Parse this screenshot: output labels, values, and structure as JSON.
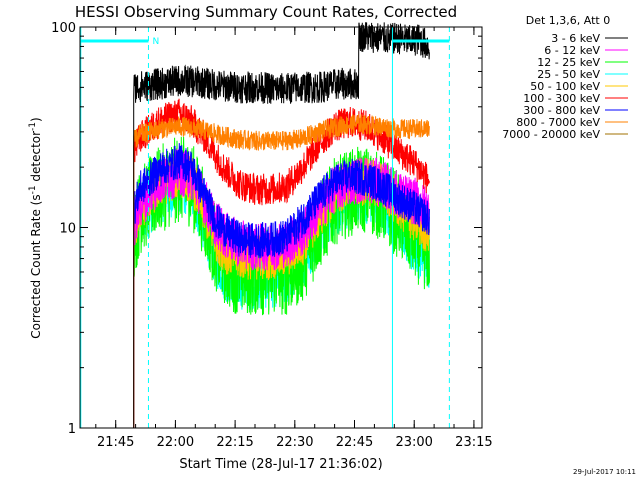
{
  "chart_data": {
    "type": "line",
    "title": "HESSI Observing Summary Count Rates, Corrected",
    "xlabel": "Start Time (28-Jul-17 21:36:02)",
    "ylabel_main": "Corrected Count Rate (s",
    "ylabel_sup": "-1",
    "ylabel_mid": " detector",
    "ylabel_sup2": "-1",
    "ylabel_end": ")",
    "yscale": "log",
    "ylim": [
      1,
      100
    ],
    "xlim_minutes_after_start": [
      0,
      101
    ],
    "x_ticks": [
      "21:45",
      "22:00",
      "22:15",
      "22:30",
      "22:45",
      "23:00",
      "23:15"
    ],
    "x_tick_minutes": [
      8.97,
      23.97,
      38.97,
      53.97,
      68.97,
      83.97,
      98.97
    ],
    "y_ticks": [
      {
        "label": "1",
        "value": 1
      },
      {
        "label": "10",
        "value": 10
      },
      {
        "label": "100",
        "value": 100
      }
    ],
    "legend_title": "Det 1,3,6, Att 0",
    "legend_position": "right",
    "night_marker_label": "N",
    "footer_date": "29-Jul-2017 10:11",
    "data_start_min": 13.5,
    "data_end_min": 87.8,
    "series": [
      {
        "name": "3 - 6 keV",
        "color": "#000000",
        "noise": 0.08,
        "points": [
          [
            13.5,
            50
          ],
          [
            20,
            52
          ],
          [
            25,
            54
          ],
          [
            30,
            53
          ],
          [
            35,
            51
          ],
          [
            40,
            50
          ],
          [
            45,
            50
          ],
          [
            50,
            49
          ],
          [
            55,
            50
          ],
          [
            60,
            50
          ],
          [
            65,
            52
          ],
          [
            70,
            52
          ],
          [
            71,
            90
          ],
          [
            72,
            90
          ],
          [
            78,
            87
          ],
          [
            80,
            88
          ],
          [
            83,
            85
          ],
          [
            85,
            87
          ],
          [
            87.8,
            80
          ]
        ]
      },
      {
        "name": "6 - 12 keV",
        "color": "#ff00ff",
        "noise": 0.12,
        "points": [
          [
            13.5,
            10
          ],
          [
            15,
            13
          ],
          [
            20,
            17
          ],
          [
            25,
            19
          ],
          [
            28,
            18
          ],
          [
            31,
            14
          ],
          [
            34,
            10.5
          ],
          [
            37,
            9
          ],
          [
            40,
            8.3
          ],
          [
            44,
            8
          ],
          [
            48,
            8
          ],
          [
            52,
            8.3
          ],
          [
            56,
            9.5
          ],
          [
            60,
            12.5
          ],
          [
            64,
            15.5
          ],
          [
            68,
            17
          ],
          [
            72,
            17.5
          ],
          [
            76,
            16.5
          ],
          [
            80,
            14.5
          ],
          [
            84,
            13.5
          ],
          [
            87.8,
            12
          ]
        ]
      },
      {
        "name": "12 - 25 keV",
        "color": "#00ff00",
        "noise": 0.22,
        "points": [
          [
            13.5,
            9
          ],
          [
            15,
            12
          ],
          [
            20,
            15.5
          ],
          [
            25,
            17.5
          ],
          [
            28,
            16.5
          ],
          [
            31,
            12
          ],
          [
            34,
            8
          ],
          [
            37,
            6.5
          ],
          [
            40,
            6
          ],
          [
            44,
            6
          ],
          [
            48,
            6
          ],
          [
            52,
            6
          ],
          [
            56,
            7
          ],
          [
            60,
            10
          ],
          [
            64,
            13.5
          ],
          [
            68,
            15
          ],
          [
            72,
            15.5
          ],
          [
            76,
            14
          ],
          [
            80,
            11.5
          ],
          [
            84,
            9
          ],
          [
            87.8,
            7.5
          ]
        ]
      },
      {
        "name": "25 - 50 keV",
        "color": "#00ffff",
        "noise": 0.16,
        "points": [
          [
            13.5,
            9
          ],
          [
            15,
            11.5
          ],
          [
            20,
            15
          ],
          [
            25,
            17
          ],
          [
            28,
            16
          ],
          [
            31,
            11
          ],
          [
            34,
            7.3
          ],
          [
            37,
            6
          ],
          [
            40,
            5.6
          ],
          [
            44,
            5.6
          ],
          [
            48,
            5.7
          ],
          [
            52,
            5.9
          ],
          [
            56,
            7
          ],
          [
            60,
            10
          ],
          [
            64,
            13
          ],
          [
            68,
            14.5
          ],
          [
            72,
            15
          ],
          [
            76,
            13.5
          ],
          [
            80,
            11
          ],
          [
            84,
            8.5
          ],
          [
            87.8,
            7
          ]
        ]
      },
      {
        "name": "50 - 100 keV",
        "color": "#ffc800",
        "noise": 0.12,
        "points": [
          [
            13.5,
            9.5
          ],
          [
            15,
            12.5
          ],
          [
            20,
            16.5
          ],
          [
            25,
            18.5
          ],
          [
            28,
            17.5
          ],
          [
            31,
            12.5
          ],
          [
            34,
            9
          ],
          [
            37,
            7.6
          ],
          [
            40,
            7.2
          ],
          [
            44,
            7.2
          ],
          [
            48,
            7.2
          ],
          [
            52,
            7.4
          ],
          [
            56,
            8.5
          ],
          [
            60,
            11.5
          ],
          [
            64,
            15
          ],
          [
            68,
            16.5
          ],
          [
            72,
            17
          ],
          [
            76,
            16
          ],
          [
            80,
            13
          ],
          [
            84,
            11
          ],
          [
            87.8,
            9.5
          ]
        ]
      },
      {
        "name": "100 - 300 keV",
        "color": "#ff0000",
        "noise": 0.08,
        "points": [
          [
            13.5,
            24
          ],
          [
            15,
            28
          ],
          [
            20,
            34
          ],
          [
            25,
            37
          ],
          [
            28,
            34
          ],
          [
            32,
            27
          ],
          [
            36,
            20
          ],
          [
            40,
            16.5
          ],
          [
            44,
            15.5
          ],
          [
            48,
            15.5
          ],
          [
            52,
            16
          ],
          [
            56,
            20
          ],
          [
            60,
            26
          ],
          [
            64,
            32
          ],
          [
            68,
            33.5
          ],
          [
            72,
            32
          ],
          [
            76,
            28
          ],
          [
            80,
            24
          ],
          [
            84,
            21
          ],
          [
            87.8,
            17
          ]
        ]
      },
      {
        "name": "300 - 800 keV",
        "color": "#0000ff",
        "noise": 0.09,
        "points": [
          [
            13.5,
            12
          ],
          [
            15,
            15.5
          ],
          [
            20,
            19.5
          ],
          [
            25,
            21.5
          ],
          [
            28,
            20
          ],
          [
            31,
            15
          ],
          [
            34,
            11
          ],
          [
            37,
            9.5
          ],
          [
            40,
            8.8
          ],
          [
            44,
            8.6
          ],
          [
            48,
            8.7
          ],
          [
            52,
            9
          ],
          [
            56,
            11
          ],
          [
            60,
            14
          ],
          [
            64,
            17
          ],
          [
            68,
            18
          ],
          [
            72,
            17.5
          ],
          [
            76,
            16
          ],
          [
            80,
            14
          ],
          [
            84,
            12.5
          ],
          [
            87.8,
            11
          ]
        ]
      },
      {
        "name": "800 - 7000 keV",
        "color": "#ff8000",
        "noise": 0.05,
        "points": [
          [
            13.5,
            27
          ],
          [
            15,
            29
          ],
          [
            20,
            31
          ],
          [
            25,
            32
          ],
          [
            30,
            31
          ],
          [
            35,
            29
          ],
          [
            40,
            27.5
          ],
          [
            45,
            27
          ],
          [
            50,
            27
          ],
          [
            55,
            27.5
          ],
          [
            60,
            30
          ],
          [
            65,
            32
          ],
          [
            70,
            33
          ],
          [
            75,
            32
          ],
          [
            80,
            31
          ],
          [
            85,
            31
          ],
          [
            87.8,
            31
          ]
        ]
      },
      {
        "name": "7000 - 20000 keV",
        "color": "#a07000",
        "noise": 0.05,
        "points": []
      }
    ]
  }
}
